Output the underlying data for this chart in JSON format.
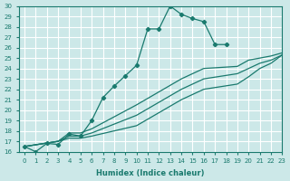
{
  "xlabel": "Humidex (Indice chaleur)",
  "ylabel": "",
  "bg_color": "#cce8e8",
  "grid_color": "#ffffff",
  "line_color": "#1a7a6e",
  "xlim": [
    -0.5,
    23
  ],
  "ylim": [
    16,
    30
  ],
  "xticks": [
    0,
    1,
    2,
    3,
    4,
    5,
    6,
    7,
    8,
    9,
    10,
    11,
    12,
    13,
    14,
    15,
    16,
    17,
    18,
    19,
    20,
    21,
    22,
    23
  ],
  "yticks": [
    16,
    17,
    18,
    19,
    20,
    21,
    22,
    23,
    24,
    25,
    26,
    27,
    28,
    29,
    30
  ],
  "lines": [
    {
      "x": [
        0,
        1,
        2,
        3,
        4,
        5,
        6,
        7,
        8,
        9,
        10,
        11,
        12,
        13,
        14,
        15,
        16,
        17,
        18
      ],
      "y": [
        16.5,
        16.0,
        16.8,
        16.7,
        17.7,
        17.5,
        19.0,
        21.2,
        22.3,
        23.3,
        24.3,
        27.8,
        27.8,
        30.0,
        29.2,
        28.8,
        28.5,
        26.3,
        26.3
      ],
      "has_markers": true
    },
    {
      "x": [
        0,
        3,
        4,
        5,
        6,
        10,
        14,
        15,
        16,
        19,
        20,
        21,
        22,
        23
      ],
      "y": [
        16.5,
        17.0,
        17.8,
        17.8,
        18.2,
        20.5,
        23.0,
        23.5,
        24.0,
        24.2,
        24.8,
        25.0,
        25.2,
        25.5
      ],
      "has_markers": false
    },
    {
      "x": [
        0,
        3,
        4,
        5,
        6,
        10,
        14,
        15,
        16,
        19,
        20,
        21,
        22,
        23
      ],
      "y": [
        16.5,
        17.0,
        17.5,
        17.5,
        17.8,
        19.5,
        22.0,
        22.5,
        23.0,
        23.5,
        24.0,
        24.5,
        24.8,
        25.3
      ],
      "has_markers": false
    },
    {
      "x": [
        0,
        3,
        4,
        5,
        6,
        10,
        14,
        15,
        16,
        19,
        20,
        21,
        22,
        23
      ],
      "y": [
        16.5,
        17.0,
        17.3,
        17.3,
        17.5,
        18.5,
        21.0,
        21.5,
        22.0,
        22.5,
        23.2,
        24.0,
        24.5,
        25.3
      ],
      "has_markers": false
    }
  ]
}
